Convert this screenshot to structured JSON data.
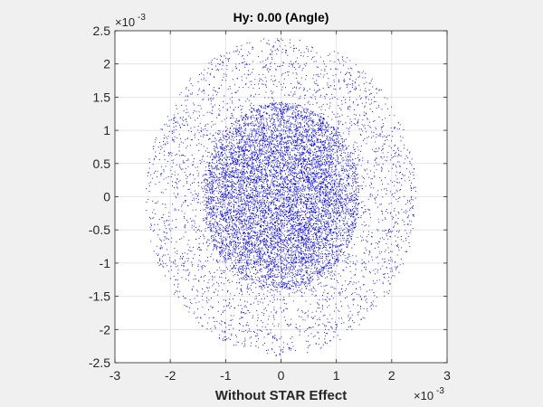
{
  "chart_data": {
    "type": "scatter",
    "title": "Hy: 0.00 (Angle)",
    "xlabel": "Without STAR Effect",
    "ylabel": "",
    "xlim": [
      -0.003,
      0.003
    ],
    "ylim": [
      -0.0025,
      0.0025
    ],
    "x_ticks": [
      "-3",
      "-2",
      "-1",
      "0",
      "1",
      "2",
      "3"
    ],
    "y_ticks": [
      "2.5",
      "2",
      "1.5",
      "1",
      "0.5",
      "0",
      "-0.5",
      "-1",
      "-1.5",
      "-2",
      "-2.5"
    ],
    "x_exponent": {
      "base": "×10",
      "power": "-3"
    },
    "y_exponent": {
      "base": "×10",
      "power": "-3"
    },
    "grid": true,
    "marker_color": "#0000ff",
    "series": [
      {
        "name": "",
        "components": [
          {
            "shape": "filled-disk",
            "center": [
              0.0,
              0.0
            ],
            "radius_x": 0.00112,
            "radius_y": 0.00112,
            "approx_points": 6000
          },
          {
            "shape": "ring",
            "center": [
              0.0,
              0.0
            ],
            "radius_x_inner": 0.00112,
            "radius_x_outer": 0.00142,
            "radius_y_inner": 0.00112,
            "radius_y_outer": 0.00142,
            "approx_points": 2200
          },
          {
            "shape": "outer-ellipse-scatter",
            "center": [
              0.0,
              0.0
            ],
            "radius_x": 0.00245,
            "radius_y": 0.0024,
            "approx_points": 3000
          }
        ]
      }
    ]
  }
}
